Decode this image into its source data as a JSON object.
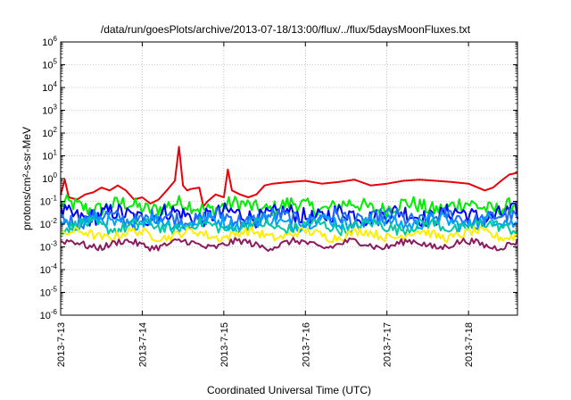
{
  "chart_data": {
    "type": "line",
    "title": "/data/run/goesPlots/archive/2013-07-18/13:00/flux/../flux/5daysMoonFluxes.txt",
    "xlabel": "Coordinated Universal Time (UTC)",
    "ylabel": "protons/cm²-s-sr-MeV",
    "yscale": "log",
    "ylim": [
      1e-06,
      1000000.0
    ],
    "xlim_days": [
      "2013-7-13",
      "2013-7-18"
    ],
    "xlim": [
      0,
      5.6
    ],
    "x_tick_labels": [
      "2013-7-13",
      "2013-7-14",
      "2013-7-15",
      "2013-7-16",
      "2013-7-17",
      "2013-7-18"
    ],
    "y_tick_exponents": [
      -6,
      -5,
      -4,
      -3,
      -2,
      -1,
      0,
      1,
      2,
      3,
      4,
      5,
      6
    ],
    "grid": true,
    "legend": "none",
    "series": [
      {
        "color": "#e8000b",
        "x": [
          0,
          0.05,
          0.1,
          0.2,
          0.3,
          0.4,
          0.5,
          0.6,
          0.7,
          0.8,
          0.9,
          1.0,
          1.1,
          1.2,
          1.3,
          1.4,
          1.45,
          1.5,
          1.55,
          1.6,
          1.7,
          1.75,
          1.8,
          1.9,
          2.0,
          2.05,
          2.1,
          2.2,
          2.3,
          2.4,
          2.5,
          2.6,
          2.8,
          3.0,
          3.2,
          3.4,
          3.6,
          3.8,
          4.0,
          4.2,
          4.4,
          4.6,
          4.8,
          5.0,
          5.2,
          5.3,
          5.4,
          5.5,
          5.6
        ],
        "values": [
          0.2,
          0.9,
          0.15,
          0.12,
          0.2,
          0.25,
          0.4,
          0.3,
          0.5,
          0.3,
          0.12,
          0.15,
          0.08,
          0.12,
          0.3,
          0.8,
          25,
          0.5,
          0.3,
          0.35,
          0.4,
          0.06,
          0.1,
          0.2,
          0.15,
          2.5,
          0.3,
          0.2,
          0.15,
          0.2,
          0.5,
          0.6,
          0.7,
          0.8,
          0.6,
          0.7,
          0.9,
          0.5,
          0.6,
          0.8,
          0.9,
          0.8,
          0.7,
          0.6,
          0.3,
          0.4,
          0.8,
          1.5,
          1.8
        ]
      },
      {
        "color": "#00ee00",
        "base": 0.06,
        "spread": 0.35,
        "x_start": 0,
        "x_end": 5.6
      },
      {
        "color": "#0000ff",
        "base": 0.025,
        "spread": 0.4,
        "x_start": 0,
        "x_end": 5.6
      },
      {
        "color": "#1e6fff",
        "base": 0.018,
        "spread": 0.35,
        "x_start": 0,
        "x_end": 5.6
      },
      {
        "color": "#00a0ff",
        "base": 0.012,
        "spread": 0.3,
        "x_start": 0,
        "x_end": 5.6
      },
      {
        "color": "#00c8a0",
        "base": 0.008,
        "spread": 0.25,
        "x_start": 0,
        "x_end": 5.6
      },
      {
        "color": "#ffee00",
        "base": 0.0035,
        "spread": 0.2,
        "x_start": 0,
        "x_end": 5.6
      },
      {
        "color": "#8b1a60",
        "base": 0.0013,
        "spread": 0.15,
        "x_start": 0,
        "x_end": 5.6
      }
    ]
  }
}
